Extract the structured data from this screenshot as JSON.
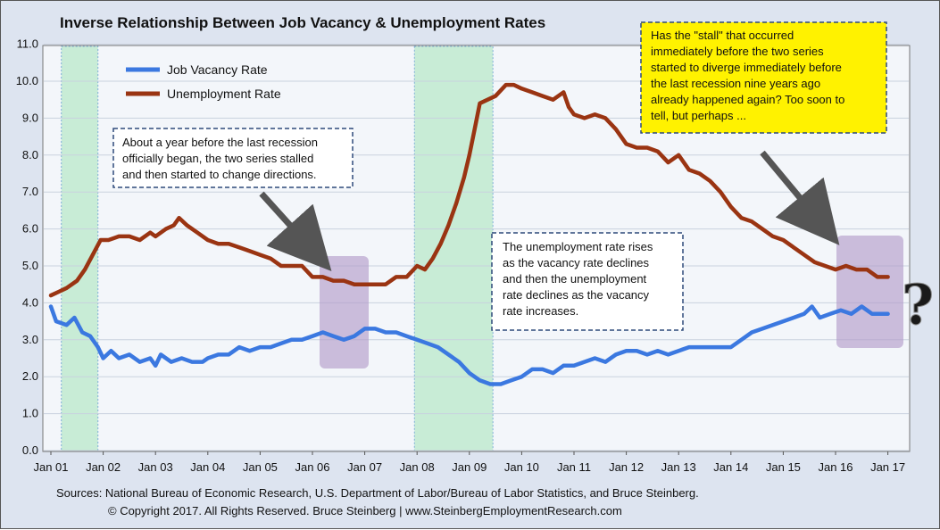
{
  "chart_data": {
    "type": "line",
    "title": "Inverse Relationship Between Job Vacancy & Unemployment Rates",
    "ylim": [
      0,
      11
    ],
    "y_ticks": [
      "0.0",
      "1.0",
      "2.0",
      "3.0",
      "4.0",
      "5.0",
      "6.0",
      "7.0",
      "8.0",
      "9.0",
      "10.0",
      "11.0"
    ],
    "x_ticks": [
      "Jan 01",
      "Jan 02",
      "Jan 03",
      "Jan 04",
      "Jan 05",
      "Jan 06",
      "Jan 07",
      "Jan 08",
      "Jan 09",
      "Jan 10",
      "Jan 11",
      "Jan 12",
      "Jan 13",
      "Jan 14",
      "Jan 15",
      "Jan 16",
      "Jan 17"
    ],
    "grid": true,
    "legend_position": "top-left",
    "recessions": [
      [
        2001.2,
        2001.9
      ],
      [
        2007.95,
        2009.45
      ]
    ],
    "series": [
      {
        "name": "Job Vacancy Rate",
        "color": "#3b78e0",
        "points": [
          [
            2001.0,
            3.9
          ],
          [
            2001.1,
            3.5
          ],
          [
            2001.3,
            3.4
          ],
          [
            2001.45,
            3.6
          ],
          [
            2001.6,
            3.2
          ],
          [
            2001.75,
            3.1
          ],
          [
            2001.9,
            2.8
          ],
          [
            2002.0,
            2.5
          ],
          [
            2002.15,
            2.7
          ],
          [
            2002.3,
            2.5
          ],
          [
            2002.5,
            2.6
          ],
          [
            2002.7,
            2.4
          ],
          [
            2002.9,
            2.5
          ],
          [
            2003.0,
            2.3
          ],
          [
            2003.1,
            2.6
          ],
          [
            2003.3,
            2.4
          ],
          [
            2003.5,
            2.5
          ],
          [
            2003.7,
            2.4
          ],
          [
            2003.9,
            2.4
          ],
          [
            2004.0,
            2.5
          ],
          [
            2004.2,
            2.6
          ],
          [
            2004.4,
            2.6
          ],
          [
            2004.6,
            2.8
          ],
          [
            2004.8,
            2.7
          ],
          [
            2005.0,
            2.8
          ],
          [
            2005.2,
            2.8
          ],
          [
            2005.4,
            2.9
          ],
          [
            2005.6,
            3.0
          ],
          [
            2005.8,
            3.0
          ],
          [
            2006.0,
            3.1
          ],
          [
            2006.2,
            3.2
          ],
          [
            2006.4,
            3.1
          ],
          [
            2006.6,
            3.0
          ],
          [
            2006.8,
            3.1
          ],
          [
            2007.0,
            3.3
          ],
          [
            2007.2,
            3.3
          ],
          [
            2007.4,
            3.2
          ],
          [
            2007.6,
            3.2
          ],
          [
            2007.8,
            3.1
          ],
          [
            2008.0,
            3.0
          ],
          [
            2008.2,
            2.9
          ],
          [
            2008.4,
            2.8
          ],
          [
            2008.6,
            2.6
          ],
          [
            2008.8,
            2.4
          ],
          [
            2009.0,
            2.1
          ],
          [
            2009.2,
            1.9
          ],
          [
            2009.4,
            1.8
          ],
          [
            2009.6,
            1.8
          ],
          [
            2009.8,
            1.9
          ],
          [
            2010.0,
            2.0
          ],
          [
            2010.2,
            2.2
          ],
          [
            2010.4,
            2.2
          ],
          [
            2010.6,
            2.1
          ],
          [
            2010.8,
            2.3
          ],
          [
            2011.0,
            2.3
          ],
          [
            2011.2,
            2.4
          ],
          [
            2011.4,
            2.5
          ],
          [
            2011.6,
            2.4
          ],
          [
            2011.8,
            2.6
          ],
          [
            2012.0,
            2.7
          ],
          [
            2012.2,
            2.7
          ],
          [
            2012.4,
            2.6
          ],
          [
            2012.6,
            2.7
          ],
          [
            2012.8,
            2.6
          ],
          [
            2013.0,
            2.7
          ],
          [
            2013.2,
            2.8
          ],
          [
            2013.4,
            2.8
          ],
          [
            2013.6,
            2.8
          ],
          [
            2013.8,
            2.8
          ],
          [
            2014.0,
            2.8
          ],
          [
            2014.2,
            3.0
          ],
          [
            2014.4,
            3.2
          ],
          [
            2014.6,
            3.3
          ],
          [
            2014.8,
            3.4
          ],
          [
            2015.0,
            3.5
          ],
          [
            2015.2,
            3.6
          ],
          [
            2015.4,
            3.7
          ],
          [
            2015.55,
            3.9
          ],
          [
            2015.7,
            3.6
          ],
          [
            2015.9,
            3.7
          ],
          [
            2016.1,
            3.8
          ],
          [
            2016.3,
            3.7
          ],
          [
            2016.5,
            3.9
          ],
          [
            2016.7,
            3.7
          ],
          [
            2016.9,
            3.7
          ],
          [
            2017.0,
            3.7
          ]
        ]
      },
      {
        "name": "Unemployment Rate",
        "color": "#9a3412",
        "points": [
          [
            2001.0,
            4.2
          ],
          [
            2001.15,
            4.3
          ],
          [
            2001.3,
            4.4
          ],
          [
            2001.5,
            4.6
          ],
          [
            2001.65,
            4.9
          ],
          [
            2001.8,
            5.3
          ],
          [
            2001.95,
            5.7
          ],
          [
            2002.1,
            5.7
          ],
          [
            2002.3,
            5.8
          ],
          [
            2002.5,
            5.8
          ],
          [
            2002.7,
            5.7
          ],
          [
            2002.9,
            5.9
          ],
          [
            2003.0,
            5.8
          ],
          [
            2003.2,
            6.0
          ],
          [
            2003.35,
            6.1
          ],
          [
            2003.45,
            6.3
          ],
          [
            2003.6,
            6.1
          ],
          [
            2003.8,
            5.9
          ],
          [
            2004.0,
            5.7
          ],
          [
            2004.2,
            5.6
          ],
          [
            2004.4,
            5.6
          ],
          [
            2004.6,
            5.5
          ],
          [
            2004.8,
            5.4
          ],
          [
            2005.0,
            5.3
          ],
          [
            2005.2,
            5.2
          ],
          [
            2005.4,
            5.0
          ],
          [
            2005.6,
            5.0
          ],
          [
            2005.8,
            5.0
          ],
          [
            2006.0,
            4.7
          ],
          [
            2006.2,
            4.7
          ],
          [
            2006.4,
            4.6
          ],
          [
            2006.6,
            4.6
          ],
          [
            2006.8,
            4.5
          ],
          [
            2007.0,
            4.5
          ],
          [
            2007.2,
            4.5
          ],
          [
            2007.4,
            4.5
          ],
          [
            2007.6,
            4.7
          ],
          [
            2007.8,
            4.7
          ],
          [
            2008.0,
            5.0
          ],
          [
            2008.15,
            4.9
          ],
          [
            2008.3,
            5.2
          ],
          [
            2008.45,
            5.6
          ],
          [
            2008.6,
            6.1
          ],
          [
            2008.75,
            6.7
          ],
          [
            2008.9,
            7.4
          ],
          [
            2009.0,
            8.0
          ],
          [
            2009.1,
            8.7
          ],
          [
            2009.2,
            9.4
          ],
          [
            2009.35,
            9.5
          ],
          [
            2009.5,
            9.6
          ],
          [
            2009.7,
            9.9
          ],
          [
            2009.85,
            9.9
          ],
          [
            2010.0,
            9.8
          ],
          [
            2010.2,
            9.7
          ],
          [
            2010.4,
            9.6
          ],
          [
            2010.6,
            9.5
          ],
          [
            2010.8,
            9.7
          ],
          [
            2010.9,
            9.3
          ],
          [
            2011.0,
            9.1
          ],
          [
            2011.2,
            9.0
          ],
          [
            2011.4,
            9.1
          ],
          [
            2011.6,
            9.0
          ],
          [
            2011.8,
            8.7
          ],
          [
            2012.0,
            8.3
          ],
          [
            2012.2,
            8.2
          ],
          [
            2012.4,
            8.2
          ],
          [
            2012.6,
            8.1
          ],
          [
            2012.8,
            7.8
          ],
          [
            2013.0,
            8.0
          ],
          [
            2013.2,
            7.6
          ],
          [
            2013.4,
            7.5
          ],
          [
            2013.6,
            7.3
          ],
          [
            2013.8,
            7.0
          ],
          [
            2014.0,
            6.6
          ],
          [
            2014.2,
            6.3
          ],
          [
            2014.4,
            6.2
          ],
          [
            2014.6,
            6.0
          ],
          [
            2014.8,
            5.8
          ],
          [
            2015.0,
            5.7
          ],
          [
            2015.2,
            5.5
          ],
          [
            2015.4,
            5.3
          ],
          [
            2015.6,
            5.1
          ],
          [
            2015.8,
            5.0
          ],
          [
            2016.0,
            4.9
          ],
          [
            2016.2,
            5.0
          ],
          [
            2016.4,
            4.9
          ],
          [
            2016.6,
            4.9
          ],
          [
            2016.8,
            4.7
          ],
          [
            2017.0,
            4.7
          ]
        ]
      }
    ]
  },
  "annotations": {
    "note_left": [
      "About a year before the last recession",
      "officially began, the two series stalled",
      "and then started to change directions."
    ],
    "note_middle": [
      "The unemployment rate rises",
      "as the vacancy rate declines",
      "and then the unemployment",
      "rate declines as the vacancy",
      "rate increases."
    ],
    "note_right": [
      "Has the \"stall\" that occurred",
      "immediately before the two series",
      "started to diverge immediately before",
      "the last recession nine years ago",
      "already happened again? Too soon to",
      "tell, but perhaps ..."
    ],
    "question_mark": "?"
  },
  "footer": {
    "sources": "Sources: National Bureau of Economic Research, U.S. Department of Labor/Bureau of Labor Statistics, and Bruce Steinberg.",
    "copyright": "© Copyright 2017. All Rights Reserved. Bruce Steinberg | www.SteinbergEmploymentResearch.com"
  },
  "colors": {
    "plot_background": "#f3f6fa",
    "recession_band": "#c8ecd6",
    "highlight_box": "#b39ccb",
    "yellow_note": "#fff200"
  }
}
